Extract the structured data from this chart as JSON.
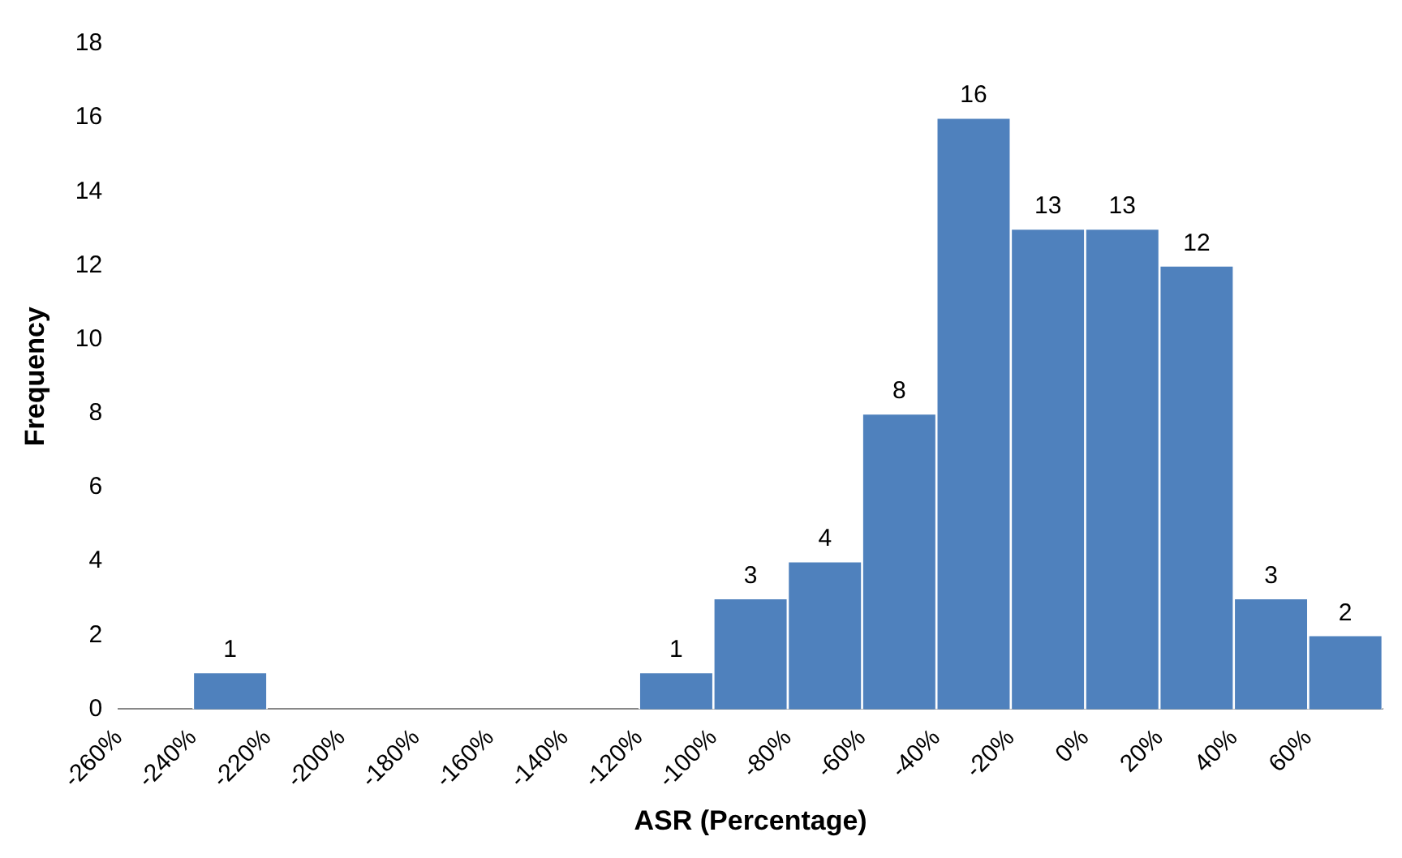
{
  "chart_data": {
    "type": "histogram",
    "xlabel": "ASR (Percentage)",
    "ylabel": "Frequency",
    "bins": [
      -240,
      -220,
      -200,
      -180,
      -160,
      -140,
      -120,
      -100,
      -80,
      -60,
      -40,
      -20,
      0,
      20,
      40,
      60,
      80
    ],
    "values": [
      1,
      0,
      0,
      0,
      0,
      0,
      1,
      3,
      4,
      8,
      16,
      13,
      13,
      12,
      3,
      2
    ],
    "value_labels": [
      "1",
      null,
      null,
      null,
      null,
      null,
      "1",
      "3",
      "4",
      "8",
      "16",
      "13",
      "13",
      "12",
      "3",
      "2"
    ],
    "color": "#4f81bd",
    "xlim": [
      -260,
      80
    ],
    "xticks": [
      {
        "value": -260,
        "label": "-260%"
      },
      {
        "value": -240,
        "label": "-240%"
      },
      {
        "value": -220,
        "label": "-220%"
      },
      {
        "value": -200,
        "label": "-200%"
      },
      {
        "value": -180,
        "label": "-180%"
      },
      {
        "value": -160,
        "label": "-160%"
      },
      {
        "value": -140,
        "label": "-140%"
      },
      {
        "value": -120,
        "label": "-120%"
      },
      {
        "value": -100,
        "label": "-100%"
      },
      {
        "value": -80,
        "label": "-80%"
      },
      {
        "value": -60,
        "label": "-60%"
      },
      {
        "value": -40,
        "label": "-40%"
      },
      {
        "value": -20,
        "label": "-20%"
      },
      {
        "value": 0,
        "label": "0%"
      },
      {
        "value": 20,
        "label": "20%"
      },
      {
        "value": 40,
        "label": "40%"
      },
      {
        "value": 60,
        "label": "60%"
      }
    ],
    "ylim": [
      0,
      18
    ],
    "yticks": [
      0,
      2,
      4,
      6,
      8,
      10,
      12,
      14,
      16,
      18
    ],
    "grid": false,
    "legend": false
  }
}
